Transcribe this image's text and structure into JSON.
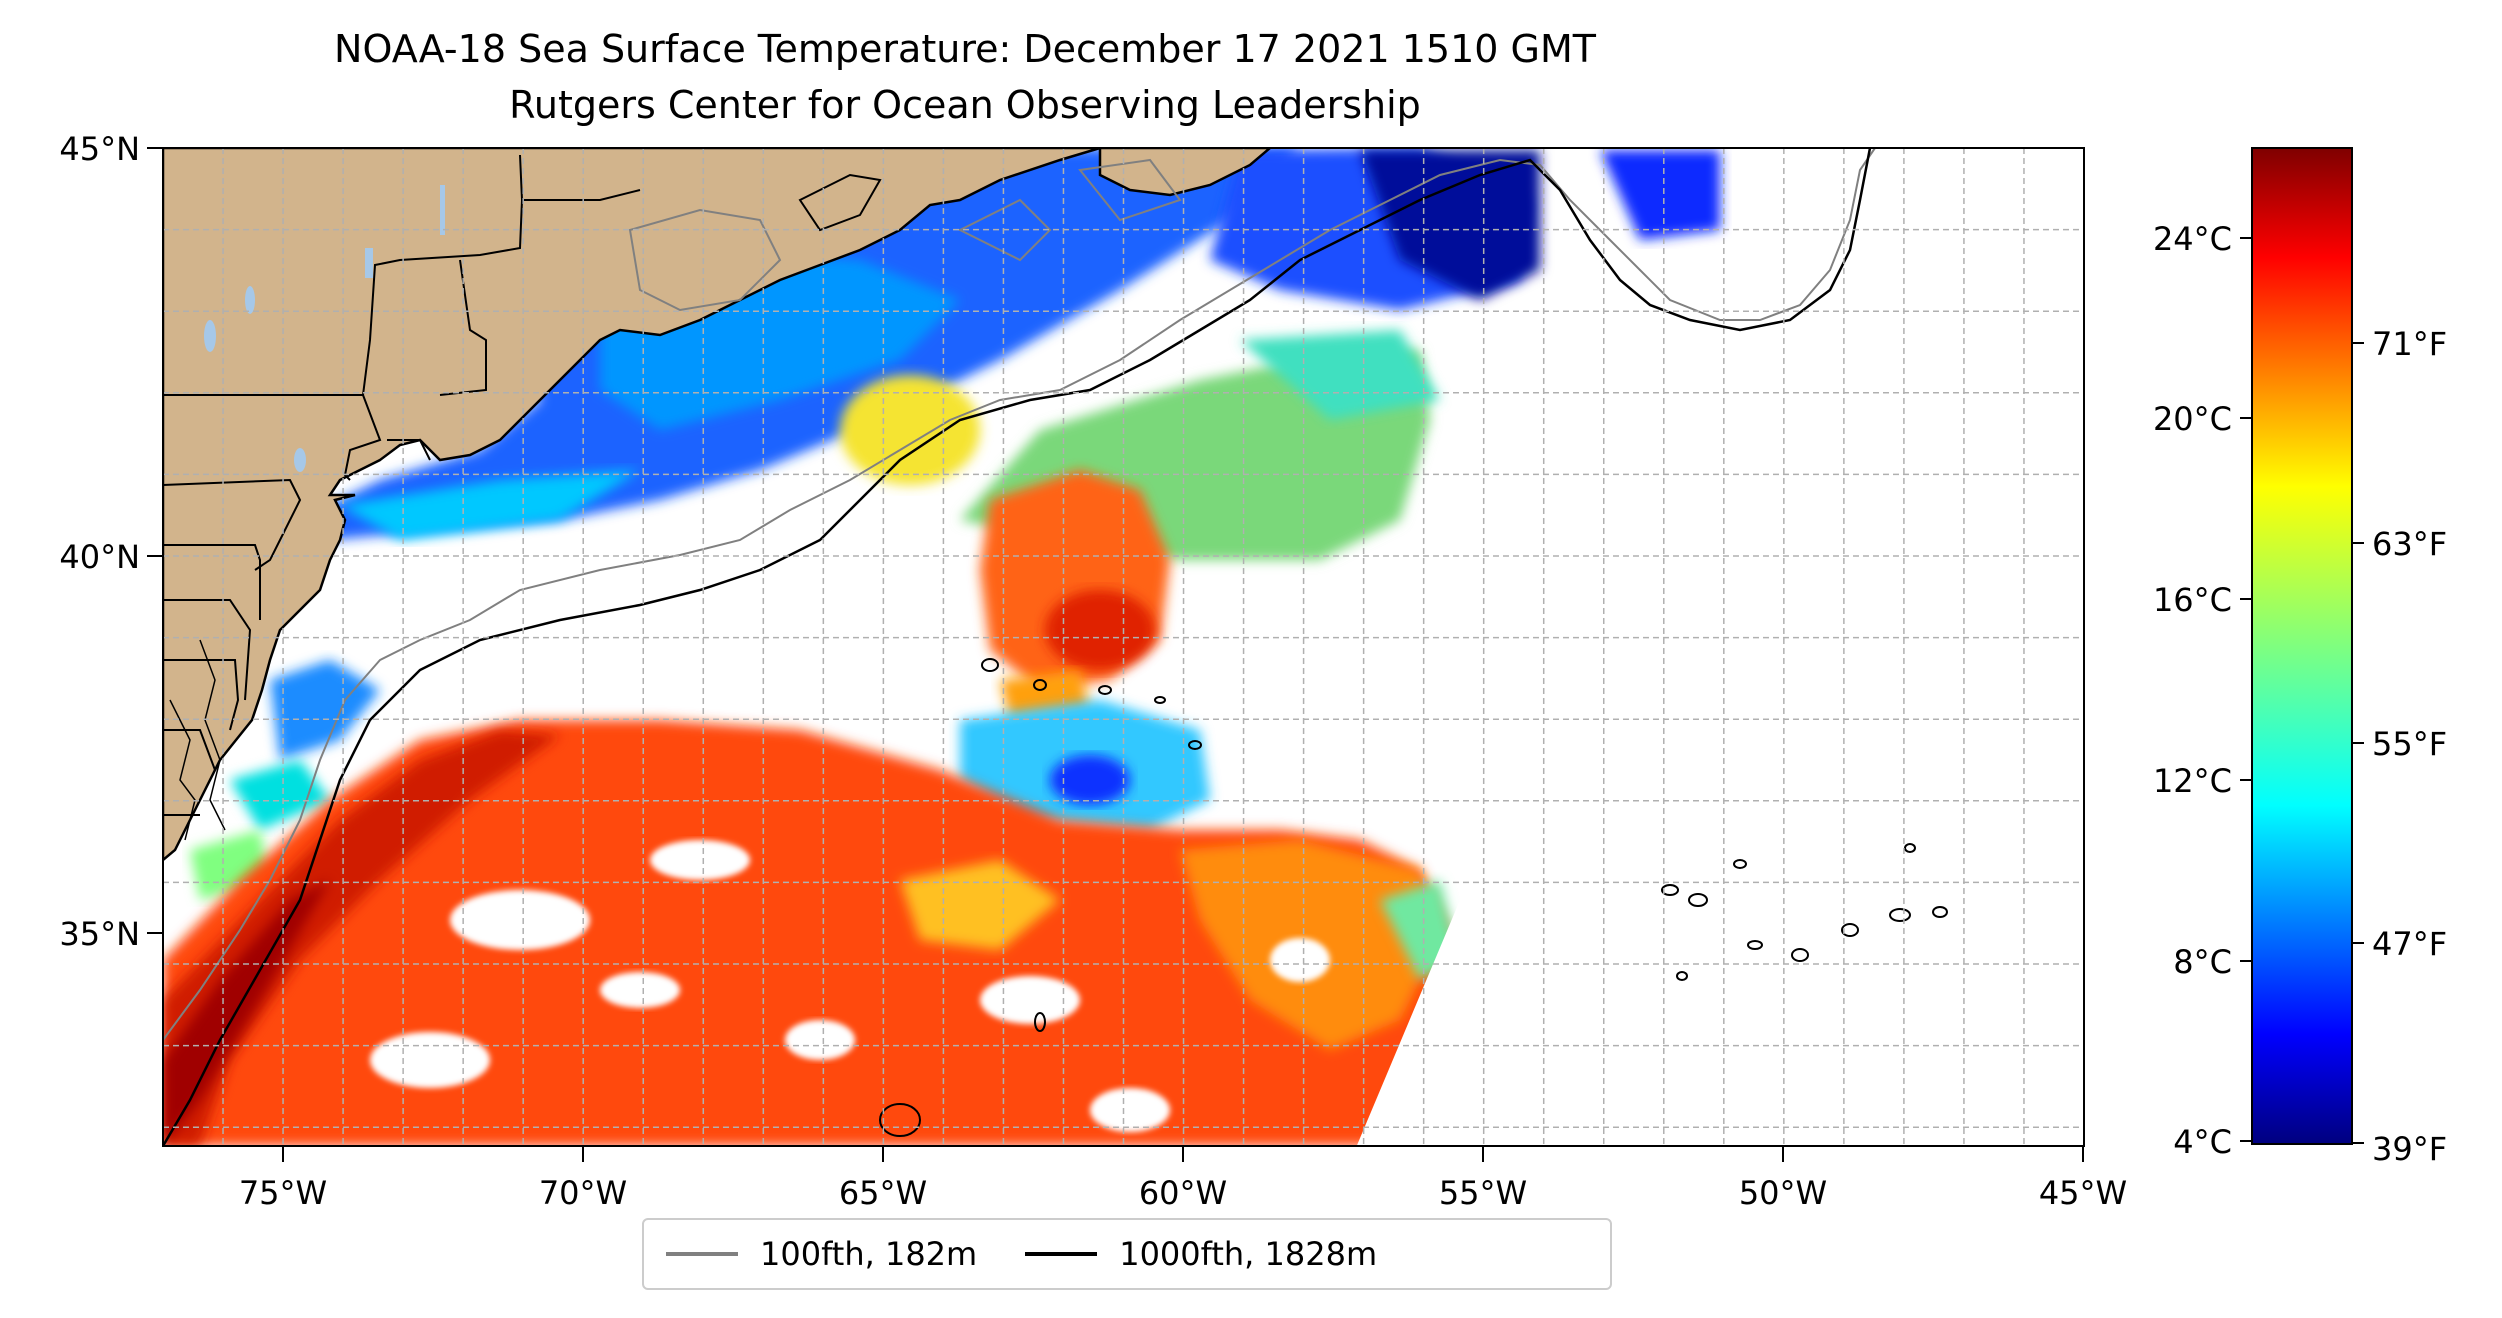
{
  "title": {
    "line1": "NOAA-18 Sea Surface Temperature: December 17 2021 1510 GMT",
    "line2": "Rutgers Center for Ocean Observing Leadership"
  },
  "map": {
    "lon_labels": [
      "75°W",
      "70°W",
      "65°W",
      "60°W",
      "55°W",
      "50°W",
      "45°W"
    ],
    "lat_labels": [
      "45°N",
      "40°N",
      "35°N"
    ],
    "lon_range": [
      -77,
      -45
    ],
    "lat_range": [
      32.2,
      45
    ]
  },
  "colorbar": {
    "celsius_labels": [
      "24°C",
      "20°C",
      "16°C",
      "12°C",
      "8°C",
      "4°C"
    ],
    "fahrenheit_labels": [
      "71°F",
      "63°F",
      "55°F",
      "47°F",
      "39°F"
    ],
    "colormap": "jet",
    "range_c": [
      4,
      26
    ]
  },
  "legend": {
    "items": [
      {
        "label": "100fth, 182m",
        "color": "#808080"
      },
      {
        "label": "1000fth, 1828m",
        "color": "#000000"
      }
    ]
  },
  "colors": {
    "land": "#d2b48c",
    "lakes": "#a6c8e8",
    "grid": "#b0b0b0"
  }
}
